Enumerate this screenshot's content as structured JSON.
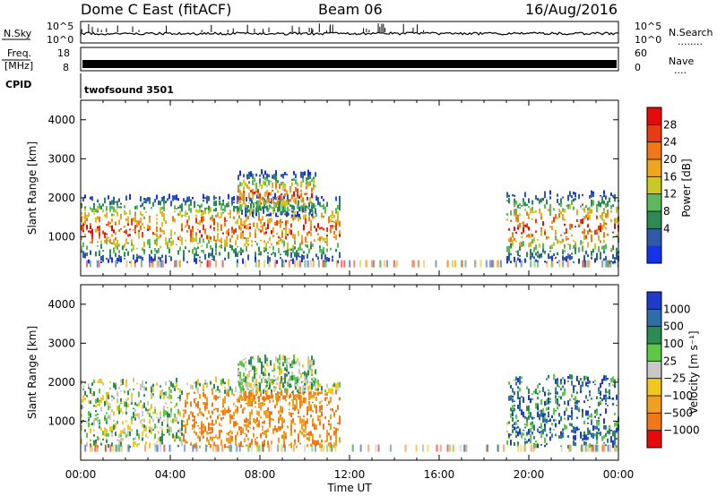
{
  "header": {
    "station": "Dome C East (fitACF)",
    "beam": "Beam 06",
    "date": "16/Aug/2016"
  },
  "strips": {
    "nsky": {
      "label": "N.Sky",
      "ticks_left": [
        "10^5",
        "10^0"
      ],
      "ticks_right": [
        "10^5",
        "10^0"
      ],
      "right_label": "N.Search",
      "right_dots": "........"
    },
    "freq": {
      "label_line1": "Freq.",
      "label_line2": "[MHz]",
      "ticks_left": [
        "18",
        "8"
      ],
      "ticks_right": [
        "60",
        "0"
      ],
      "right_label": "Nave",
      "right_dots": "...."
    },
    "cpid": {
      "label": "CPID",
      "mode": "twofsound 3501"
    }
  },
  "chart_data": [
    {
      "type": "heatmap",
      "name": "Power",
      "ylabel": "Slant Range [km]",
      "xlabel": "",
      "ylim": [
        0,
        4500
      ],
      "yticks": [
        "1000",
        "2000",
        "3000",
        "4000"
      ],
      "xlim_hours": [
        0,
        24
      ],
      "colorbar": {
        "label": "Power [dB]",
        "tick_labels": [
          "4",
          "8",
          "12",
          "16",
          "20",
          "24",
          "28"
        ],
        "colors": [
          "#1432e6",
          "#2e5aa8",
          "#2e8a55",
          "#5cb85c",
          "#c8c826",
          "#f0a51e",
          "#f07818",
          "#e63c14",
          "#e60a0a"
        ]
      },
      "echo_regions": [
        {
          "t_start": 0.0,
          "t_end": 11.6,
          "range_min": 300,
          "range_max": 2000
        },
        {
          "t_start": 7.0,
          "t_end": 10.5,
          "range_min": 1500,
          "range_max": 2600
        },
        {
          "t_start": 19.0,
          "t_end": 24.0,
          "range_min": 300,
          "range_max": 2100
        }
      ]
    },
    {
      "type": "heatmap",
      "name": "Velocity",
      "ylabel": "Slant Range [km]",
      "xlabel": "Time UT",
      "ylim": [
        0,
        4500
      ],
      "yticks": [
        "1000",
        "2000",
        "3000",
        "4000"
      ],
      "xlim_hours": [
        0,
        24
      ],
      "xticks": [
        "00:00",
        "04:00",
        "08:00",
        "12:00",
        "16:00",
        "20:00",
        "00:00"
      ],
      "colorbar": {
        "label": "Velocity [m s⁻¹]",
        "tick_labels": [
          "1000",
          "500",
          "100",
          "25",
          "−25",
          "−100",
          "−500",
          "−1000"
        ],
        "colors": [
          "#1e3cc8",
          "#2e6ea8",
          "#2e8a55",
          "#5cc846",
          "#c8c8c8",
          "#f0c81e",
          "#f0a01e",
          "#f07818",
          "#e60a0a"
        ]
      },
      "echo_regions": [
        {
          "t_start": 0.0,
          "t_end": 11.6,
          "range_min": 300,
          "range_max": 2000
        },
        {
          "t_start": 7.0,
          "t_end": 10.5,
          "range_min": 1500,
          "range_max": 2600
        },
        {
          "t_start": 19.0,
          "t_end": 24.0,
          "range_min": 300,
          "range_max": 2100
        }
      ]
    }
  ]
}
